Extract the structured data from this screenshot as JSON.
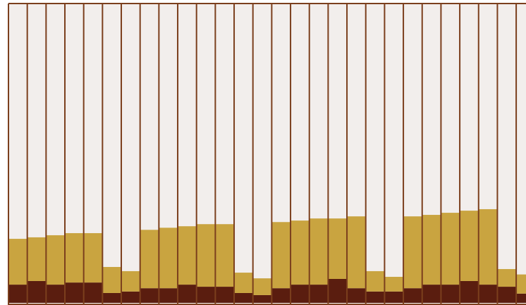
{
  "chart_data": {
    "type": "bar",
    "stacked": true,
    "categories": [
      null,
      null,
      null,
      null,
      null,
      null,
      null,
      null,
      null,
      null,
      null,
      null,
      null,
      null,
      null,
      null,
      null,
      null,
      null,
      null,
      null,
      null,
      null,
      null,
      null,
      null,
      null,
      null
    ],
    "series": [
      {
        "color": "#5a1d0f",
        "values": [
          6.1,
          7.3,
          6.1,
          6.8,
          6.8,
          3.3,
          3.8,
          4.9,
          4.9,
          6.1,
          5.4,
          5.4,
          3.3,
          2.6,
          4.9,
          6.1,
          6.1,
          8.0,
          4.9,
          3.8,
          3.8,
          4.9,
          6.1,
          6.1,
          7.3,
          6.1,
          5.4,
          3.1
        ]
      },
      {
        "color": "#c9a440",
        "values": [
          15.3,
          14.6,
          16.5,
          16.5,
          16.5,
          8.7,
          6.8,
          19.5,
          20.2,
          19.5,
          20.9,
          20.9,
          6.8,
          5.6,
          22.1,
          21.4,
          22.1,
          20.2,
          24.0,
          6.8,
          4.9,
          24.0,
          23.3,
          24.0,
          23.5,
          25.2,
          5.9,
          6.4
        ]
      }
    ],
    "ylim": [
      0,
      100
    ],
    "background": "#f2eeec",
    "border_color": "#7b3f1d"
  }
}
